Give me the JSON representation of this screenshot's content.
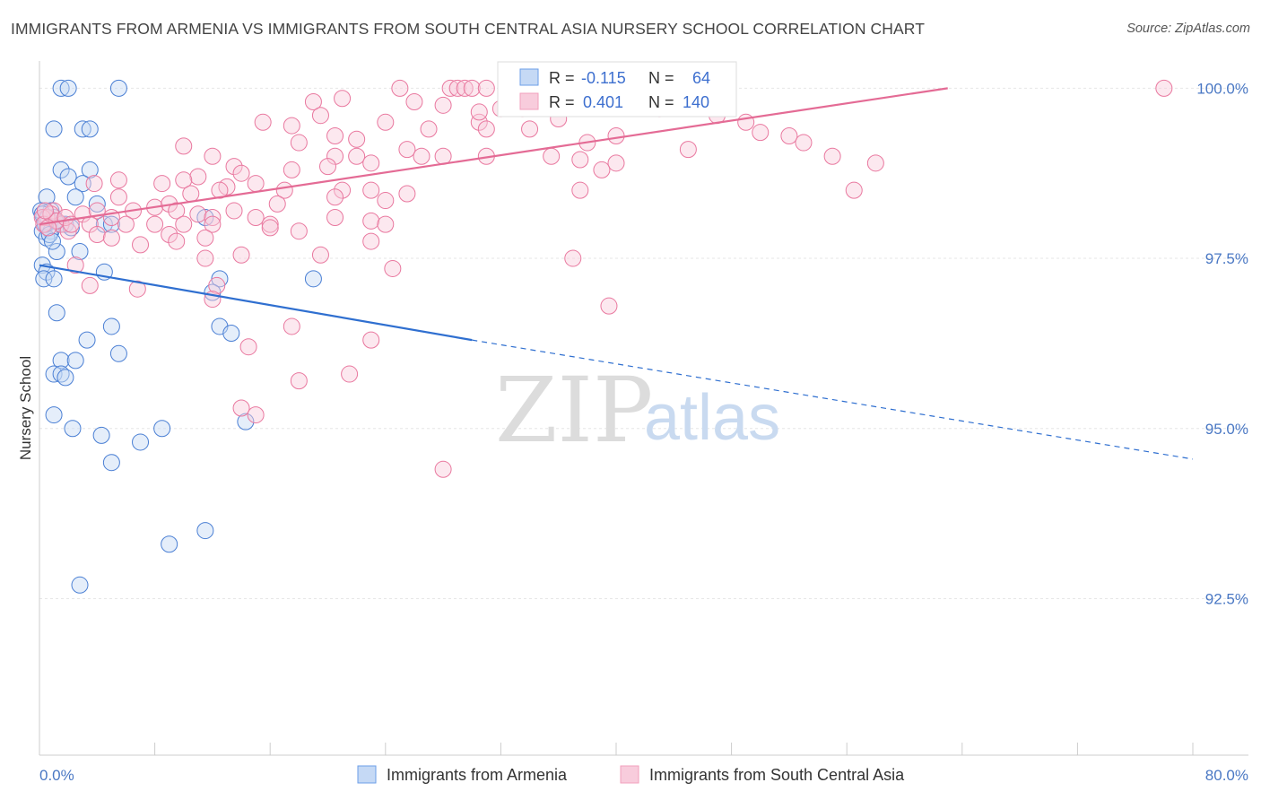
{
  "title": "IMMIGRANTS FROM ARMENIA VS IMMIGRANTS FROM SOUTH CENTRAL ASIA NURSERY SCHOOL CORRELATION CHART",
  "source": "Source: ZipAtlas.com",
  "watermark": {
    "zip": "ZIP",
    "atlas": "atlas"
  },
  "chart_data": {
    "type": "scatter",
    "ylabel": "Nursery School",
    "xlim": [
      0,
      80
    ],
    "ylim": [
      90.2,
      100.4
    ],
    "x_tick_labels": [
      {
        "value": 0,
        "label": "0.0%"
      },
      {
        "value": 80,
        "label": "80.0%"
      }
    ],
    "x_minor_ticks": [
      8,
      16,
      24,
      32,
      40,
      48,
      56,
      64,
      72,
      80
    ],
    "y_ticks": [
      {
        "value": 100.0,
        "label": "100.0%"
      },
      {
        "value": 97.5,
        "label": "97.5%"
      },
      {
        "value": 95.0,
        "label": "95.0%"
      },
      {
        "value": 92.5,
        "label": "92.5%"
      }
    ],
    "grid": true,
    "series": [
      {
        "name": "Immigrants from Armenia",
        "color": "#6b9ee8",
        "stroke": "#4a7fd4",
        "fill": "#c5d9f5",
        "line_color": "#2f6fd0",
        "R": "-0.115",
        "N": "64",
        "trend": {
          "x0": 0,
          "y0": 97.4,
          "x1": 30,
          "y1": 96.3,
          "x_dash_end": 80,
          "y_dash_end": 94.55
        },
        "points": [
          [
            1.5,
            100.0
          ],
          [
            2.0,
            100.0
          ],
          [
            5.5,
            100.0
          ],
          [
            1.0,
            99.4
          ],
          [
            3.0,
            99.4
          ],
          [
            3.5,
            99.4
          ],
          [
            1.5,
            98.8
          ],
          [
            2.0,
            98.7
          ],
          [
            3.5,
            98.8
          ],
          [
            3.0,
            98.6
          ],
          [
            0.5,
            98.4
          ],
          [
            2.5,
            98.4
          ],
          [
            4.0,
            98.3
          ],
          [
            0.8,
            98.2
          ],
          [
            1.0,
            98.1
          ],
          [
            0.3,
            98.1
          ],
          [
            0.5,
            98.0
          ],
          [
            1.8,
            98.0
          ],
          [
            0.2,
            97.9
          ],
          [
            0.8,
            97.9
          ],
          [
            1.5,
            98.0
          ],
          [
            4.5,
            98.0
          ],
          [
            5.0,
            98.0
          ],
          [
            11.5,
            98.1
          ],
          [
            0.5,
            97.8
          ],
          [
            1.2,
            97.6
          ],
          [
            2.8,
            97.6
          ],
          [
            0.2,
            97.4
          ],
          [
            0.5,
            97.3
          ],
          [
            4.5,
            97.3
          ],
          [
            0.3,
            97.2
          ],
          [
            1.0,
            97.2
          ],
          [
            12.5,
            97.2
          ],
          [
            19.0,
            97.2
          ],
          [
            12.0,
            97.0
          ],
          [
            1.2,
            96.7
          ],
          [
            5.0,
            96.5
          ],
          [
            12.5,
            96.5
          ],
          [
            13.3,
            96.4
          ],
          [
            3.3,
            96.3
          ],
          [
            5.5,
            96.1
          ],
          [
            1.5,
            96.0
          ],
          [
            2.5,
            96.0
          ],
          [
            1.0,
            95.8
          ],
          [
            1.5,
            95.8
          ],
          [
            1.8,
            95.75
          ],
          [
            1.0,
            95.2
          ],
          [
            2.3,
            95.0
          ],
          [
            4.3,
            94.9
          ],
          [
            8.5,
            95.0
          ],
          [
            7.0,
            94.8
          ],
          [
            14.3,
            95.1
          ],
          [
            5.0,
            94.5
          ],
          [
            11.5,
            93.5
          ],
          [
            9.0,
            93.3
          ],
          [
            2.8,
            92.7
          ],
          [
            0.1,
            98.2
          ],
          [
            0.2,
            98.15
          ],
          [
            0.4,
            98.0
          ],
          [
            0.6,
            98.1
          ],
          [
            1.1,
            98.05
          ],
          [
            2.2,
            97.95
          ],
          [
            0.7,
            97.85
          ],
          [
            0.9,
            97.75
          ]
        ]
      },
      {
        "name": "Immigrants from South Central Asia",
        "color": "#f29fbc",
        "stroke": "#e9789f",
        "fill": "#f8ccdc",
        "line_color": "#e46b95",
        "R": "0.401",
        "N": "140",
        "trend": {
          "x0": 0,
          "y0": 98.0,
          "x1": 63,
          "y1": 100.0
        },
        "points": [
          [
            25,
            100.0
          ],
          [
            28.5,
            100.0
          ],
          [
            29,
            100.0
          ],
          [
            29.5,
            100.0
          ],
          [
            30,
            100.0
          ],
          [
            31,
            100.0
          ],
          [
            33,
            100.0
          ],
          [
            36,
            100.0
          ],
          [
            42,
            100.0
          ],
          [
            44,
            100.0
          ],
          [
            78,
            100.0
          ],
          [
            37,
            99.9
          ],
          [
            33.5,
            99.7
          ],
          [
            19,
            99.8
          ],
          [
            21,
            99.85
          ],
          [
            26,
            99.8
          ],
          [
            28,
            99.75
          ],
          [
            32,
            99.7
          ],
          [
            19.5,
            99.6
          ],
          [
            24,
            99.5
          ],
          [
            30.5,
            99.5
          ],
          [
            31,
            99.4
          ],
          [
            36,
            99.55
          ],
          [
            17.5,
            99.45
          ],
          [
            20.5,
            99.3
          ],
          [
            15.5,
            99.5
          ],
          [
            22,
            99.25
          ],
          [
            27,
            99.4
          ],
          [
            34,
            99.4
          ],
          [
            38,
            99.2
          ],
          [
            10,
            99.15
          ],
          [
            18,
            99.2
          ],
          [
            12,
            99.0
          ],
          [
            20.5,
            99.0
          ],
          [
            22,
            99.0
          ],
          [
            23,
            98.9
          ],
          [
            25.5,
            99.1
          ],
          [
            26.5,
            99.0
          ],
          [
            31,
            99.0
          ],
          [
            35.5,
            99.0
          ],
          [
            37.5,
            98.95
          ],
          [
            40,
            98.9
          ],
          [
            20,
            98.85
          ],
          [
            17.5,
            98.8
          ],
          [
            13.5,
            98.85
          ],
          [
            14,
            98.75
          ],
          [
            11,
            98.7
          ],
          [
            8.5,
            98.6
          ],
          [
            10,
            98.65
          ],
          [
            15,
            98.6
          ],
          [
            5.5,
            98.65
          ],
          [
            13,
            98.55
          ],
          [
            3.8,
            98.6
          ],
          [
            17,
            98.5
          ],
          [
            21,
            98.5
          ],
          [
            10.5,
            98.45
          ],
          [
            12.5,
            98.5
          ],
          [
            20.5,
            98.4
          ],
          [
            23,
            98.5
          ],
          [
            25.5,
            98.45
          ],
          [
            37.5,
            98.5
          ],
          [
            16.5,
            98.3
          ],
          [
            24,
            98.35
          ],
          [
            5.5,
            98.4
          ],
          [
            8,
            98.25
          ],
          [
            9,
            98.3
          ],
          [
            6.5,
            98.2
          ],
          [
            9.5,
            98.2
          ],
          [
            11,
            98.15
          ],
          [
            1.0,
            98.2
          ],
          [
            3,
            98.15
          ],
          [
            4,
            98.2
          ],
          [
            5,
            98.1
          ],
          [
            12,
            98.1
          ],
          [
            13.5,
            98.2
          ],
          [
            15,
            98.1
          ],
          [
            3.5,
            98.0
          ],
          [
            0.5,
            98.1
          ],
          [
            1.5,
            98.0
          ],
          [
            6,
            98.0
          ],
          [
            8,
            98.0
          ],
          [
            10,
            98.0
          ],
          [
            12,
            98.0
          ],
          [
            16,
            98.0
          ],
          [
            20.5,
            98.1
          ],
          [
            16,
            97.95
          ],
          [
            18,
            97.9
          ],
          [
            23,
            98.05
          ],
          [
            24,
            98.0
          ],
          [
            2.0,
            97.9
          ],
          [
            4,
            97.85
          ],
          [
            5,
            97.8
          ],
          [
            9,
            97.85
          ],
          [
            11.5,
            97.8
          ],
          [
            7,
            97.7
          ],
          [
            9.5,
            97.75
          ],
          [
            23,
            97.75
          ],
          [
            11.5,
            97.5
          ],
          [
            14,
            97.55
          ],
          [
            19.5,
            97.55
          ],
          [
            37,
            97.5
          ],
          [
            2.5,
            97.4
          ],
          [
            24.5,
            97.35
          ],
          [
            3.5,
            97.1
          ],
          [
            6.8,
            97.05
          ],
          [
            12.3,
            97.1
          ],
          [
            39.5,
            96.8
          ],
          [
            12.0,
            96.9
          ],
          [
            17.5,
            96.5
          ],
          [
            23,
            96.3
          ],
          [
            14.5,
            96.2
          ],
          [
            18,
            95.7
          ],
          [
            21.5,
            95.8
          ],
          [
            14,
            95.3
          ],
          [
            15,
            95.2
          ],
          [
            28,
            94.4
          ],
          [
            43,
            99.7
          ],
          [
            47,
            99.6
          ],
          [
            49,
            99.5
          ],
          [
            52,
            99.3
          ],
          [
            53,
            99.2
          ],
          [
            55,
            99.0
          ],
          [
            58,
            98.9
          ],
          [
            56.5,
            98.5
          ],
          [
            0.2,
            98.1
          ],
          [
            0.3,
            98.0
          ],
          [
            0.8,
            98.15
          ],
          [
            1.2,
            98.05
          ],
          [
            0.6,
            97.95
          ],
          [
            1.8,
            98.1
          ],
          [
            2.2,
            98.0
          ],
          [
            0.4,
            98.2
          ],
          [
            40,
            99.3
          ],
          [
            45,
            99.1
          ],
          [
            50,
            99.35
          ],
          [
            30.5,
            99.65
          ],
          [
            28,
            99.0
          ],
          [
            39,
            98.8
          ]
        ]
      }
    ]
  }
}
